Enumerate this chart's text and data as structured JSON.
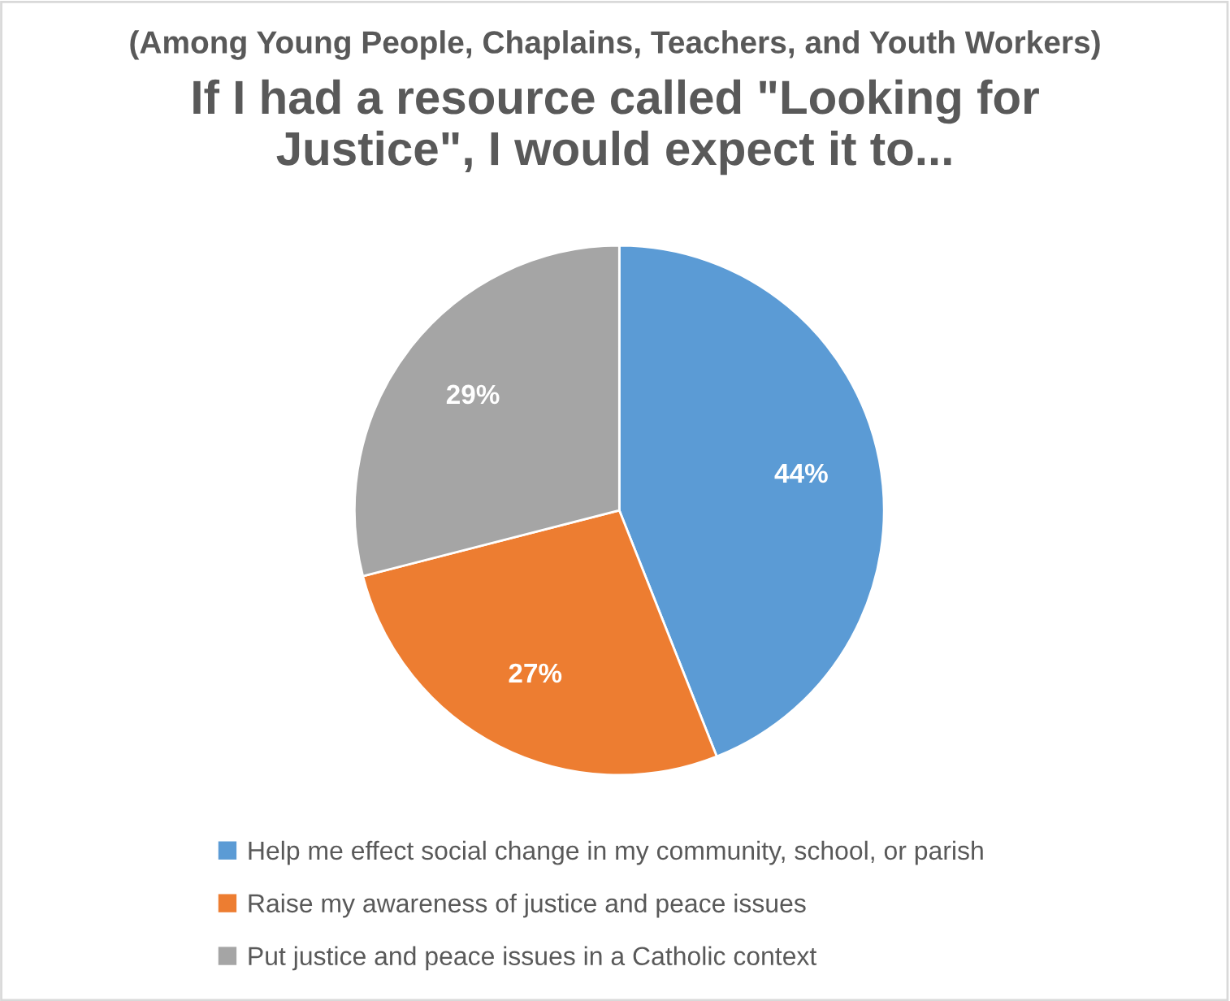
{
  "chart_data": {
    "type": "pie",
    "subtitle": "(Among Young People, Chaplains, Teachers, and Youth Workers)",
    "title": "If I had a resource called \"Looking for Justice\", I would expect it to...",
    "categories": [
      "Help me effect social change in my community, school, or parish",
      "Raise my awareness of justice and peace issues",
      "Put justice and peace issues in a Catholic context"
    ],
    "values": [
      44,
      27,
      29
    ],
    "colors": [
      "#5b9bd5",
      "#ed7d31",
      "#a5a5a5"
    ],
    "value_labels": [
      "44%",
      "27%",
      "29%"
    ],
    "legend": "bottom"
  }
}
